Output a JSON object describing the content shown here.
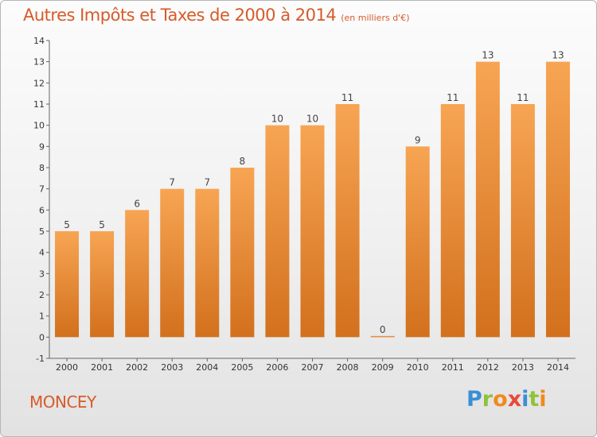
{
  "header": {
    "title": "Autres Impôts et Taxes de 2000 à 2014",
    "unit": "(en milliers d'€)"
  },
  "footer": {
    "commune": "MONCEY",
    "logo_letters": [
      "P",
      "r",
      "o",
      "x",
      "i",
      "t",
      "i"
    ]
  },
  "colors": {
    "bar_top": "#f7a553",
    "bar_bottom": "#d2701d",
    "title": "#d65b2a",
    "logo": [
      "#3a8fd6",
      "#8fc23a",
      "#f08a1c",
      "#e84a3a",
      "#3a8fd6",
      "#8fc23a",
      "#f08a1c"
    ]
  },
  "chart_data": {
    "type": "bar",
    "categories": [
      "2000",
      "2001",
      "2002",
      "2003",
      "2004",
      "2005",
      "2006",
      "2007",
      "2008",
      "2009",
      "2010",
      "2011",
      "2012",
      "2013",
      "2014"
    ],
    "values": [
      5,
      5,
      6,
      7,
      7,
      8,
      10,
      10,
      11,
      0,
      9,
      11,
      13,
      11,
      13
    ],
    "ylim": [
      -1,
      14
    ],
    "yticks": [
      "-1",
      "0",
      "1",
      "2",
      "3",
      "4",
      "5",
      "6",
      "7",
      "8",
      "9",
      "10",
      "11",
      "12",
      "13",
      "14"
    ],
    "grid": false,
    "legend": "none"
  }
}
